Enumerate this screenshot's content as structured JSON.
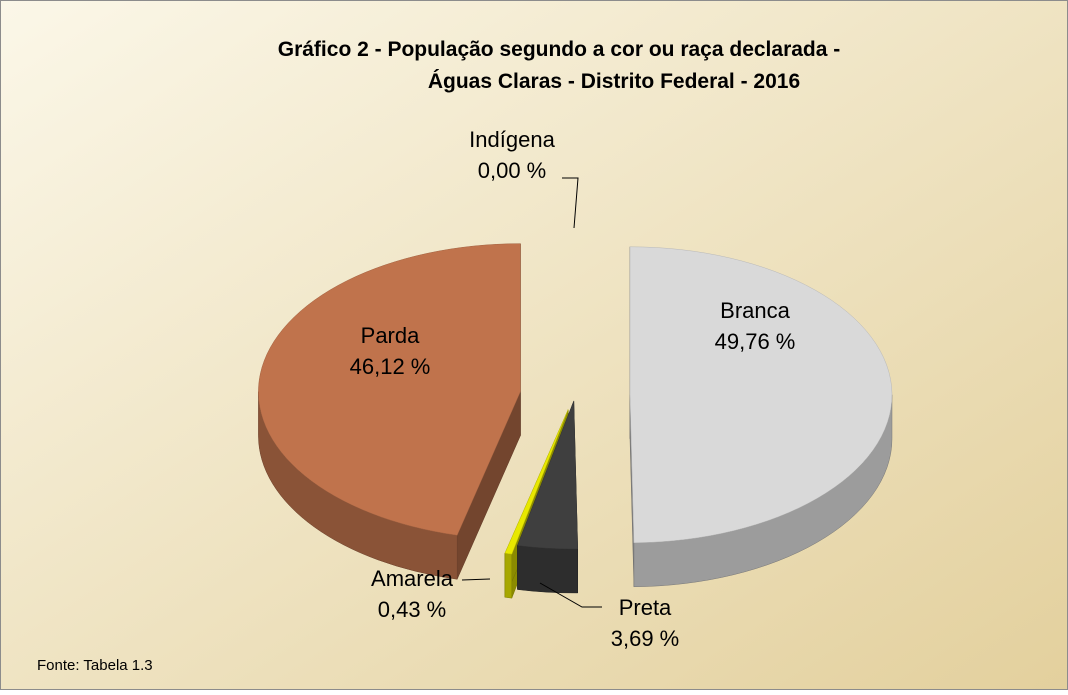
{
  "chart_data": {
    "type": "pie",
    "title": [
      "Gráfico 2 - População segundo a cor ou raça declarada -",
      "Águas Claras - Distrito Federal - 2016"
    ],
    "categories": [
      "Branca",
      "Preta",
      "Amarela",
      "Parda",
      "Indígena"
    ],
    "values": [
      49.76,
      3.69,
      0.43,
      46.12,
      0.0
    ],
    "value_labels": [
      "49,76 %",
      "3,69 %",
      "0,43 %",
      "46,12 %",
      "0,00 %"
    ],
    "colors": [
      "#d9d9d9",
      "#3f3f3f",
      "#e8e800",
      "#c0734c",
      "#4f81bd"
    ],
    "source": "Fonte: Tabela 1.3"
  }
}
